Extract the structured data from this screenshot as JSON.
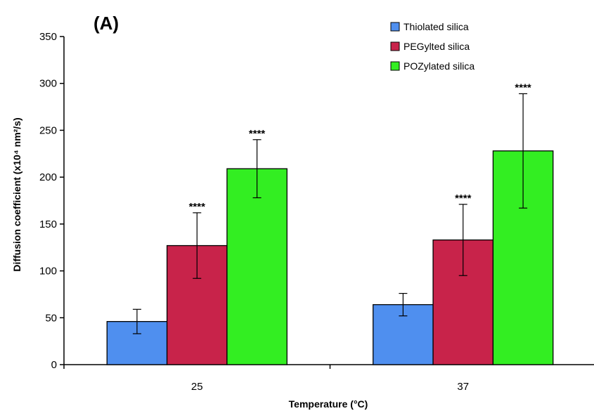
{
  "chart_data": {
    "type": "bar",
    "panel_label": "(A)",
    "xlabel": "Temperature (°C)",
    "ylabel": "Diffusion coefficient (x10⁴ nm²/s)",
    "ylim": [
      0,
      350
    ],
    "yticks": [
      0,
      50,
      100,
      150,
      200,
      250,
      300,
      350
    ],
    "categories": [
      "25",
      "37"
    ],
    "series": [
      {
        "name": "Thiolated silica",
        "color": "#4f8fef",
        "values": [
          46,
          64
        ],
        "errors": [
          13,
          12
        ],
        "sig": [
          "",
          ""
        ]
      },
      {
        "name": "PEGylted silica",
        "color": "#c8234a",
        "values": [
          127,
          133
        ],
        "errors": [
          35,
          38
        ],
        "sig": [
          "****",
          "****"
        ]
      },
      {
        "name": "POZylated silica",
        "color": "#33ee22",
        "values": [
          209,
          228
        ],
        "errors": [
          31,
          61
        ],
        "sig": [
          "****",
          "****"
        ]
      }
    ],
    "legend_position": "top-right",
    "grid": false
  }
}
